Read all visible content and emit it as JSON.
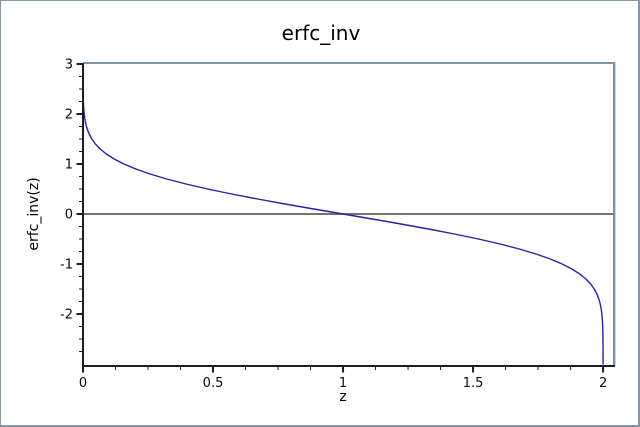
{
  "figure": {
    "title": "erfc_inv",
    "xlabel": "z",
    "ylabel": "erfc_inv(z)"
  },
  "style": {
    "background": "#ffffff",
    "window_border": "#8796ab",
    "frame": "#8091a5",
    "frame_highlight": "#ccd7e2",
    "axis": "#1c1c24",
    "zero_line": "#616161",
    "text": "#0a0a0a"
  },
  "chart_data": {
    "type": "line",
    "title": "erfc_inv",
    "xlabel": "z",
    "ylabel": "erfc_inv(z)",
    "xlim": [
      0,
      2.042
    ],
    "ylim": [
      -3.04,
      3.02
    ],
    "grid": false,
    "legend": "none",
    "zero_line_y": 0,
    "x_ticks": [
      {
        "value": 0,
        "label": "0"
      },
      {
        "value": 0.5,
        "label": "0.5"
      },
      {
        "value": 1,
        "label": "1"
      },
      {
        "value": 1.5,
        "label": "1.5"
      },
      {
        "value": 2,
        "label": "2"
      }
    ],
    "y_ticks": [
      {
        "value": 3,
        "label": "3"
      },
      {
        "value": 2,
        "label": "2"
      },
      {
        "value": 1,
        "label": "1"
      },
      {
        "value": 0,
        "label": "0"
      },
      {
        "value": -1,
        "label": "-1"
      },
      {
        "value": -2,
        "label": "-2"
      }
    ],
    "x_minor_step": 0.125,
    "y_minor_step": 0.25,
    "series": [
      {
        "name": "erfc_inv",
        "color": "#2222aa",
        "points": [
          [
            2.2e-05,
            3.0
          ],
          [
            4.1e-05,
            2.9
          ],
          [
            7.5e-05,
            2.8
          ],
          [
            0.00013,
            2.7
          ],
          [
            0.00024,
            2.6
          ],
          [
            0.00041,
            2.5
          ],
          [
            0.00069,
            2.4
          ],
          [
            0.00114,
            2.3
          ],
          [
            0.00186,
            2.2
          ],
          [
            0.00298,
            2.1
          ],
          [
            0.00468,
            2.0
          ],
          [
            0.00721,
            1.9
          ],
          [
            0.01091,
            1.8
          ],
          [
            0.01621,
            1.7
          ],
          [
            0.02365,
            1.6
          ],
          [
            0.03389,
            1.5
          ],
          [
            0.04771,
            1.4
          ],
          [
            0.06599,
            1.3
          ],
          [
            0.08969,
            1.2
          ],
          [
            0.11979,
            1.1
          ],
          [
            0.1573,
            1.0
          ],
          [
            0.20309,
            0.9
          ],
          [
            0.2579,
            0.8
          ],
          [
            0.3222,
            0.7
          ],
          [
            0.39614,
            0.6
          ],
          [
            0.4795,
            0.5
          ],
          [
            0.57161,
            0.4
          ],
          [
            0.67137,
            0.3
          ],
          [
            0.7773,
            0.2
          ],
          [
            0.88754,
            0.1
          ],
          [
            1.0,
            0.0
          ],
          [
            1.11246,
            -0.1
          ],
          [
            1.2227,
            -0.2
          ],
          [
            1.32863,
            -0.3
          ],
          [
            1.42839,
            -0.4
          ],
          [
            1.5205,
            -0.5
          ],
          [
            1.60386,
            -0.6
          ],
          [
            1.6778,
            -0.7
          ],
          [
            1.7421,
            -0.8
          ],
          [
            1.79691,
            -0.9
          ],
          [
            1.8427,
            -1.0
          ],
          [
            1.88021,
            -1.1
          ],
          [
            1.91031,
            -1.2
          ],
          [
            1.93401,
            -1.3
          ],
          [
            1.95229,
            -1.4
          ],
          [
            1.96611,
            -1.5
          ],
          [
            1.97635,
            -1.6
          ],
          [
            1.98379,
            -1.7
          ],
          [
            1.98909,
            -1.8
          ],
          [
            1.99279,
            -1.9
          ],
          [
            1.99532,
            -2.0
          ],
          [
            1.99702,
            -2.1
          ],
          [
            1.99814,
            -2.2
          ],
          [
            1.99886,
            -2.3
          ],
          [
            1.99931,
            -2.4
          ],
          [
            1.99959,
            -2.5
          ],
          [
            1.99976,
            -2.6
          ],
          [
            1.99987,
            -2.7
          ],
          [
            1.999925,
            -2.8
          ],
          [
            1.999959,
            -2.9
          ],
          [
            1.999978,
            -3.0
          ]
        ]
      }
    ]
  }
}
